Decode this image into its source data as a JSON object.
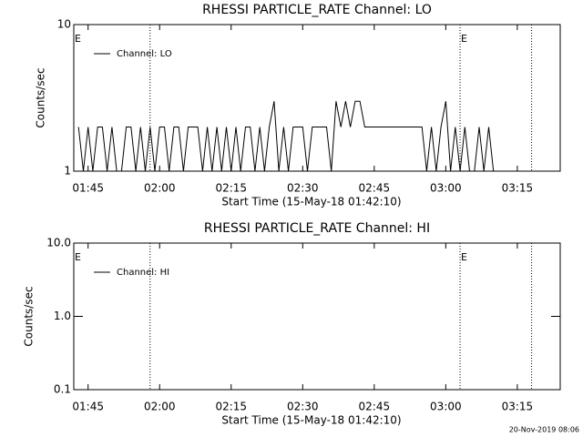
{
  "chart_data": [
    {
      "type": "line",
      "title": "RHESSI PARTICLE_RATE Channel: LO",
      "xlabel": "Start Time (15-May-18 01:42:10)",
      "ylabel": "Counts/sec",
      "log_y": true,
      "xlim": [
        "01:42",
        "03:24"
      ],
      "ylim": [
        1,
        10
      ],
      "yticks": [
        1,
        10
      ],
      "xticks": [
        "01:45",
        "02:00",
        "02:15",
        "02:30",
        "02:45",
        "03:00",
        "03:15"
      ],
      "vlines": [
        "01:58",
        "03:03",
        "03:18"
      ],
      "annotations": [
        {
          "x": "01:42",
          "text": "E"
        },
        {
          "x": "03:03",
          "text": "E"
        }
      ],
      "legend": "upper left",
      "x": [
        "01:43",
        "01:44",
        "01:45",
        "01:46",
        "01:47",
        "01:48",
        "01:49",
        "01:50",
        "01:51",
        "01:52",
        "01:53",
        "01:54",
        "01:55",
        "01:56",
        "01:57",
        "01:58",
        "01:59",
        "02:00",
        "02:01",
        "02:02",
        "02:03",
        "02:04",
        "02:05",
        "02:06",
        "02:07",
        "02:08",
        "02:09",
        "02:10",
        "02:11",
        "02:12",
        "02:13",
        "02:14",
        "02:15",
        "02:16",
        "02:17",
        "02:18",
        "02:19",
        "02:20",
        "02:21",
        "02:22",
        "02:23",
        "02:24",
        "02:25",
        "02:26",
        "02:27",
        "02:28",
        "02:29",
        "02:30",
        "02:31",
        "02:32",
        "02:33",
        "02:34",
        "02:35",
        "02:36",
        "02:37",
        "02:38",
        "02:39",
        "02:40",
        "02:41",
        "02:42",
        "02:43",
        "02:44",
        "02:45",
        "02:46",
        "02:47",
        "02:48",
        "02:49",
        "02:50",
        "02:51",
        "02:52",
        "02:53",
        "02:54",
        "02:55",
        "02:56",
        "02:57",
        "02:58",
        "02:59",
        "03:00",
        "03:01",
        "03:02",
        "03:03",
        "03:04",
        "03:05",
        "03:06",
        "03:07",
        "03:08",
        "03:09",
        "03:10",
        "03:11"
      ],
      "series": [
        {
          "name": "Channel: LO",
          "color": "#000000",
          "values": [
            2,
            1,
            2,
            1,
            2,
            2,
            1,
            2,
            1,
            1,
            2,
            2,
            1,
            2,
            1,
            2,
            1,
            2,
            2,
            1,
            2,
            2,
            1,
            2,
            2,
            2,
            1,
            2,
            1,
            2,
            1,
            2,
            1,
            2,
            1,
            2,
            2,
            1,
            2,
            1,
            2,
            3,
            1,
            2,
            1,
            2,
            2,
            2,
            1,
            2,
            2,
            2,
            2,
            1,
            3,
            2,
            3,
            2,
            3,
            3,
            2,
            2,
            2,
            2,
            2,
            2,
            2,
            2,
            2,
            2,
            2,
            2,
            2,
            1,
            2,
            1,
            2,
            3,
            1,
            2,
            1,
            2,
            1,
            1,
            2,
            1,
            2,
            1,
            1
          ]
        }
      ]
    },
    {
      "type": "line",
      "title": "RHESSI PARTICLE_RATE Channel: HI",
      "xlabel": "Start Time (15-May-18 01:42:10)",
      "ylabel": "Counts/sec",
      "log_y": true,
      "xlim": [
        "01:42",
        "03:24"
      ],
      "ylim": [
        0.1,
        10
      ],
      "yticks": [
        0.1,
        {
          "value": 1,
          "label": "1.0"
        },
        {
          "value": 10,
          "label": "10.0"
        }
      ],
      "xticks": [
        "01:45",
        "02:00",
        "02:15",
        "02:30",
        "02:45",
        "03:00",
        "03:15"
      ],
      "vlines": [
        "01:58",
        "03:03",
        "03:18"
      ],
      "annotations": [
        {
          "x": "01:42",
          "text": "E"
        },
        {
          "x": "03:03",
          "text": "E"
        }
      ],
      "legend": "upper left",
      "x": [],
      "series": [
        {
          "name": "Channel: HI",
          "color": "#000000",
          "values": []
        }
      ]
    }
  ],
  "footer": "20-Nov-2019 08:06"
}
